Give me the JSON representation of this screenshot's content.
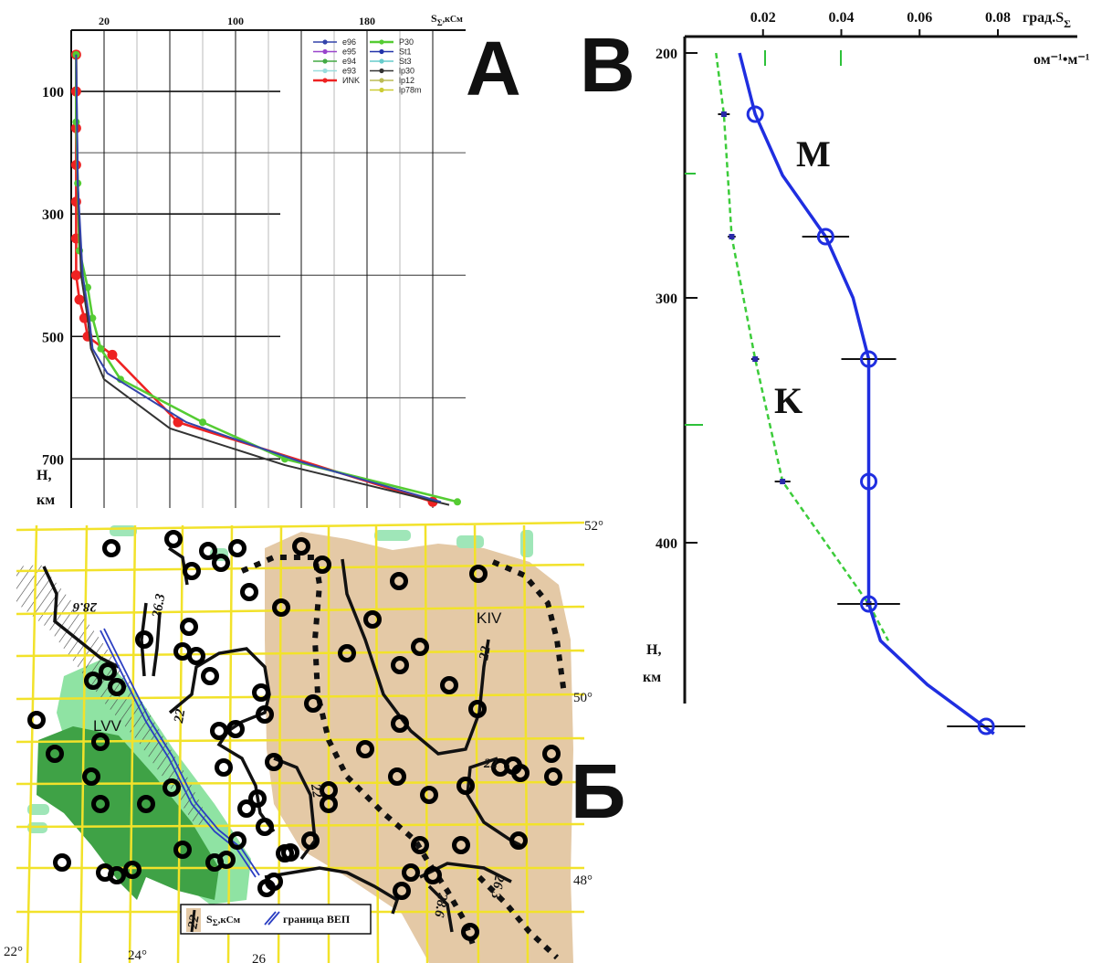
{
  "panels": {
    "A": {
      "label": "A",
      "x_axis_label": "S",
      "x_axis_sub": "Σ",
      "x_axis_unit": ",кСм",
      "x_ticks": [
        "20",
        "100",
        "180"
      ],
      "y_axis_label": "H,",
      "y_axis_unit": "км",
      "y_ticks": [
        "100",
        "300",
        "500",
        "700"
      ],
      "legend": [
        {
          "name": "e96",
          "color": "#3344aa"
        },
        {
          "name": "e95",
          "color": "#9944cc"
        },
        {
          "name": "e94",
          "color": "#44aa44"
        },
        {
          "name": "e93",
          "color": "#99dddd"
        },
        {
          "name": "ИNK",
          "color": "#ee2222"
        },
        {
          "name": "P30",
          "color": "#55cc33"
        },
        {
          "name": "St1",
          "color": "#2233aa"
        },
        {
          "name": "St3",
          "color": "#66cccc"
        },
        {
          "name": "lp30",
          "color": "#333333"
        },
        {
          "name": "lp12",
          "color": "#bbbb55"
        },
        {
          "name": "lp78m",
          "color": "#cccc33"
        }
      ]
    },
    "B": {
      "label": "Б",
      "legend_symbol_label": "22",
      "legend_text": "S",
      "legend_text_sub": "Σ",
      "legend_text_unit": ",кСм",
      "legend_boundary": "граница ВЕП",
      "region_labels": [
        "KIV",
        "LVV"
      ],
      "isoline_labels": [
        "28.6",
        "26.3",
        "22",
        "22",
        "22",
        "22",
        "28.6",
        "26.3"
      ],
      "lat_labels": [
        "52°",
        "50°",
        "48°"
      ],
      "lon_labels": [
        "22°",
        "24°",
        "26"
      ]
    },
    "C": {
      "label": "B",
      "x_axis_label": "град.S",
      "x_axis_sub": "Σ",
      "x_axis_unit": "ом⁻¹•м⁻¹",
      "x_ticks": [
        "0.02",
        "0.04",
        "0.06",
        "0.08"
      ],
      "y_axis_label": "H,",
      "y_axis_unit": "км",
      "y_ticks": [
        "200",
        "300",
        "400"
      ],
      "curve_labels": [
        "M",
        "K"
      ]
    }
  },
  "chart_data": [
    {
      "type": "line",
      "panel": "A",
      "x_unit": "кСм",
      "y_unit": "км",
      "xlim": [
        0,
        240
      ],
      "ylim": [
        0,
        780
      ],
      "y_inverted": true,
      "series": [
        {
          "name": "ИNK",
          "color": "#ee2222",
          "x": [
            3,
            3,
            3,
            3,
            3,
            3,
            3,
            5,
            8,
            10,
            25,
            65,
            220
          ],
          "y": [
            40,
            100,
            160,
            220,
            280,
            340,
            400,
            440,
            470,
            500,
            530,
            640,
            770
          ]
        },
        {
          "name": "P30",
          "color": "#55cc33",
          "x": [
            3,
            3,
            4,
            5,
            10,
            13,
            18,
            30,
            80,
            130,
            235
          ],
          "y": [
            40,
            150,
            250,
            360,
            420,
            470,
            520,
            570,
            640,
            700,
            770
          ]
        },
        {
          "name": "lp30",
          "color": "#333333",
          "x": [
            3,
            4,
            6,
            10,
            12,
            20,
            60,
            130,
            230
          ],
          "y": [
            40,
            250,
            400,
            470,
            520,
            570,
            650,
            710,
            775
          ]
        },
        {
          "name": "e96",
          "color": "#3344aa",
          "x": [
            3,
            4,
            7,
            11,
            13,
            22,
            70,
            140,
            225
          ],
          "y": [
            40,
            250,
            400,
            470,
            520,
            560,
            640,
            705,
            770
          ]
        }
      ]
    },
    {
      "type": "line",
      "panel": "B",
      "xlabel": "град.S",
      "x_unit": "ом⁻¹•м⁻¹",
      "y_unit": "км",
      "xlim": [
        0,
        0.09
      ],
      "ylim": [
        200,
        470
      ],
      "y_inverted": true,
      "series": [
        {
          "name": "M",
          "x": [
            0.018,
            0.036,
            0.047,
            0.047,
            0.047,
            0.077
          ],
          "y": [
            225,
            275,
            325,
            375,
            425,
            475
          ],
          "x_err": [
            0,
            0.006,
            0.007,
            0,
            0.008,
            0.01
          ]
        },
        {
          "name": "K",
          "x": [
            0.01,
            0.012,
            0.018,
            0.025,
            0.047
          ],
          "y": [
            225,
            275,
            325,
            375,
            425
          ],
          "x_err": [
            0.0015,
            0.001,
            0.001,
            0.002,
            0
          ]
        }
      ]
    }
  ]
}
